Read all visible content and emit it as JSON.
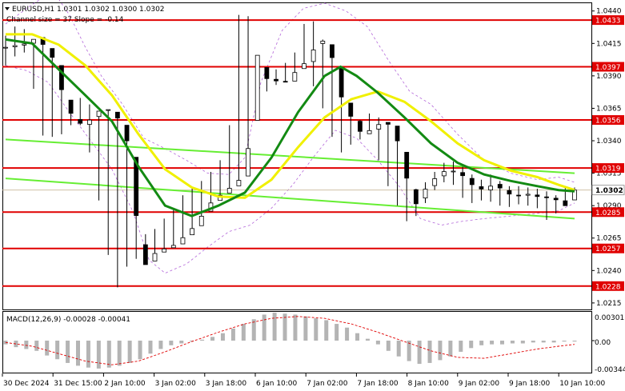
{
  "header": {
    "symbol_line": "EURUSD,H1  1.0301 1.0302 1.0300 1.0302",
    "channel_line": "Channel size = 37 Slope = -0.14"
  },
  "macd": {
    "label": "MACD(12,26,9) -0.00028 -0.00041",
    "ticks": [
      "0.00301",
      "0.00",
      "-0.00344"
    ]
  },
  "price_axis": {
    "ticks": [
      "1.0440",
      "1.0415",
      "1.0390",
      "1.0365",
      "1.0340",
      "1.0315",
      "1.0290",
      "1.0265",
      "1.0240",
      "1.0215"
    ],
    "current_price": "1.0302"
  },
  "levels": [
    {
      "value": 1.0433,
      "label": "1.0433"
    },
    {
      "value": 1.0397,
      "label": "1.0397"
    },
    {
      "value": 1.0356,
      "label": "1.0356"
    },
    {
      "value": 1.0319,
      "label": "1.0319"
    },
    {
      "value": 1.0285,
      "label": "1.0285"
    },
    {
      "value": 1.0257,
      "label": "1.0257"
    },
    {
      "value": 1.0228,
      "label": "1.0228"
    }
  ],
  "time_axis": [
    "30 Dec 2024",
    "31 Dec 15:00",
    "2 Jan 10:00",
    "3 Jan 02:00",
    "3 Jan 18:00",
    "6 Jan 10:00",
    "7 Jan 02:00",
    "7 Jan 18:00",
    "8 Jan 10:00",
    "9 Jan 02:00",
    "9 Jan 18:00",
    "10 Jan 10:00"
  ],
  "colors": {
    "level_line": "#e00000",
    "label_bg": "#e00000",
    "sma_green": "#138a13",
    "sma_yellow": "#f0f000",
    "channel": "#66ee33",
    "envelope": "#b366d9",
    "candles": "#000000"
  },
  "chart_data": {
    "type": "candlestick",
    "symbol": "EURUSD",
    "timeframe": "H1",
    "ohlc": {
      "open": 1.0301,
      "high": 1.0302,
      "low": 1.03,
      "close": 1.0302
    },
    "y_range": [
      1.021,
      1.0446
    ],
    "close_path": [
      [
        0,
        1.0412
      ],
      [
        4,
        1.0415
      ],
      [
        6,
        1.042
      ],
      [
        9,
        1.0403
      ],
      [
        11,
        1.0372
      ],
      [
        13,
        1.0355
      ],
      [
        15,
        1.0352
      ],
      [
        17,
        1.0362
      ],
      [
        19,
        1.0365
      ],
      [
        21,
        1.0358
      ],
      [
        23,
        1.0338
      ],
      [
        24,
        1.0308
      ],
      [
        25,
        1.0262
      ],
      [
        26,
        1.0243
      ],
      [
        28,
        1.0253
      ],
      [
        30,
        1.0257
      ],
      [
        32,
        1.026
      ],
      [
        34,
        1.0268
      ],
      [
        36,
        1.0276
      ],
      [
        38,
        1.029
      ],
      [
        40,
        1.0297
      ],
      [
        42,
        1.0303
      ],
      [
        44,
        1.031
      ],
      [
        45,
        1.0317
      ],
      [
        46,
        1.0345
      ],
      [
        47,
        1.0412
      ],
      [
        48,
        1.0395
      ],
      [
        49,
        1.0388
      ],
      [
        51,
        1.0386
      ],
      [
        53,
        1.0385
      ],
      [
        55,
        1.0396
      ],
      [
        57,
        1.0402
      ],
      [
        59,
        1.042
      ],
      [
        61,
        1.041
      ],
      [
        62,
        1.0395
      ],
      [
        63,
        1.0375
      ],
      [
        65,
        1.0358
      ],
      [
        67,
        1.0345
      ],
      [
        69,
        1.0349
      ],
      [
        71,
        1.0355
      ],
      [
        73,
        1.035
      ],
      [
        74,
        1.0335
      ],
      [
        75,
        1.0318
      ],
      [
        76,
        1.0302
      ],
      [
        77,
        1.029
      ],
      [
        78,
        1.0298
      ],
      [
        80,
        1.0308
      ],
      [
        82,
        1.0316
      ],
      [
        84,
        1.0317
      ],
      [
        86,
        1.0313
      ],
      [
        88,
        1.0305
      ],
      [
        90,
        1.0302
      ],
      [
        92,
        1.0307
      ],
      [
        94,
        1.03
      ],
      [
        96,
        1.0297
      ],
      [
        98,
        1.0299
      ],
      [
        100,
        1.0297
      ],
      [
        102,
        1.0296
      ],
      [
        104,
        1.0294
      ],
      [
        105,
        1.0288
      ],
      [
        106,
        1.0296
      ],
      [
        107,
        1.0302
      ]
    ],
    "highs": [
      1.0421,
      1.0428,
      1.0426,
      1.041,
      1.0388,
      1.0362,
      1.0365,
      1.037,
      1.0373,
      1.0368,
      1.0348,
      1.0318,
      1.0272,
      1.0262,
      1.0265,
      1.0268,
      1.0272,
      1.028,
      1.0288,
      1.0298,
      1.0304,
      1.0309,
      1.0316,
      1.0325,
      1.0352,
      1.0437,
      1.0436,
      1.0405,
      1.0393,
      1.0395,
      1.04,
      1.0408,
      1.043,
      1.0432,
      1.0418,
      1.0397,
      1.0372,
      1.0356,
      1.0356,
      1.0361,
      1.0358,
      1.0344,
      1.0327,
      1.0312,
      1.0303,
      1.0308,
      1.0316,
      1.0323,
      1.0324,
      1.032,
      1.0314,
      1.031,
      1.0314,
      1.0309,
      1.0305,
      1.0305,
      1.0304,
      1.0303,
      1.0301,
      1.0298,
      1.0304,
      1.0304
    ],
    "lows": [
      1.0398,
      1.0405,
      1.0408,
      1.038,
      1.0344,
      1.0343,
      1.0345,
      1.0352,
      1.0352,
      1.0331,
      1.0294,
      1.0252,
      1.0227,
      1.0243,
      1.0249,
      1.0252,
      1.0258,
      1.0266,
      1.0272,
      1.0285,
      1.0291,
      1.0297,
      1.0302,
      1.0309,
      1.0333,
      1.0387,
      1.0378,
      1.0378,
      1.0378,
      1.0383,
      1.0392,
      1.0398,
      1.0403,
      1.0382,
      1.0365,
      1.0343,
      1.0331,
      1.0337,
      1.0341,
      1.0347,
      1.0325,
      1.0305,
      1.029,
      1.0278,
      1.0282,
      1.0292,
      1.0302,
      1.0308,
      1.0306,
      1.0296,
      1.0292,
      1.0294,
      1.0293,
      1.029,
      1.0289,
      1.0291,
      1.029,
      1.0288,
      1.0279,
      1.0284,
      1.0295,
      1.0299
    ],
    "sma_green": [
      [
        0,
        1.0418
      ],
      [
        5,
        1.0415
      ],
      [
        10,
        1.0395
      ],
      [
        15,
        1.0375
      ],
      [
        20,
        1.0355
      ],
      [
        25,
        1.032
      ],
      [
        30,
        1.029
      ],
      [
        35,
        1.0282
      ],
      [
        40,
        1.029
      ],
      [
        45,
        1.03
      ],
      [
        50,
        1.0327
      ],
      [
        55,
        1.0362
      ],
      [
        60,
        1.039
      ],
      [
        63,
        1.0397
      ],
      [
        66,
        1.039
      ],
      [
        70,
        1.0377
      ],
      [
        75,
        1.0358
      ],
      [
        80,
        1.0338
      ],
      [
        85,
        1.0323
      ],
      [
        90,
        1.0314
      ],
      [
        95,
        1.0309
      ],
      [
        100,
        1.0305
      ],
      [
        104,
        1.0302
      ],
      [
        107,
        1.0301
      ]
    ],
    "sma_yellow": [
      [
        0,
        1.0422
      ],
      [
        5,
        1.0422
      ],
      [
        10,
        1.0414
      ],
      [
        15,
        1.0398
      ],
      [
        20,
        1.0375
      ],
      [
        25,
        1.0345
      ],
      [
        30,
        1.0318
      ],
      [
        35,
        1.0304
      ],
      [
        40,
        1.0297
      ],
      [
        45,
        1.0296
      ],
      [
        50,
        1.031
      ],
      [
        55,
        1.0335
      ],
      [
        60,
        1.0358
      ],
      [
        65,
        1.0372
      ],
      [
        70,
        1.0378
      ],
      [
        75,
        1.037
      ],
      [
        80,
        1.0355
      ],
      [
        85,
        1.0338
      ],
      [
        90,
        1.0325
      ],
      [
        95,
        1.0317
      ],
      [
        100,
        1.0312
      ],
      [
        104,
        1.0306
      ],
      [
        107,
        1.0302
      ]
    ],
    "channel": {
      "upper": [
        [
          0,
          1.0341
        ],
        [
          107,
          1.0315
        ]
      ],
      "lower": [
        [
          0,
          1.0311
        ],
        [
          107,
          1.028
        ]
      ]
    },
    "envelope_upper": [
      [
        0,
        1.043
      ],
      [
        5,
        1.0445
      ],
      [
        9,
        1.0455
      ],
      [
        12,
        1.0437
      ],
      [
        15,
        1.0412
      ],
      [
        18,
        1.039
      ],
      [
        22,
        1.0368
      ],
      [
        26,
        1.0342
      ],
      [
        30,
        1.0334
      ],
      [
        34,
        1.0325
      ],
      [
        38,
        1.0315
      ],
      [
        42,
        1.0314
      ],
      [
        45,
        1.0327
      ],
      [
        48,
        1.0385
      ],
      [
        52,
        1.0425
      ],
      [
        56,
        1.0442
      ],
      [
        60,
        1.0446
      ],
      [
        64,
        1.044
      ],
      [
        68,
        1.0428
      ],
      [
        72,
        1.0402
      ],
      [
        76,
        1.0378
      ],
      [
        80,
        1.0368
      ],
      [
        85,
        1.0345
      ],
      [
        90,
        1.0325
      ],
      [
        95,
        1.0315
      ],
      [
        100,
        1.031
      ],
      [
        104,
        1.0312
      ],
      [
        107,
        1.0308
      ]
    ],
    "envelope_lower": [
      [
        0,
        1.0398
      ],
      [
        4,
        1.0394
      ],
      [
        8,
        1.0385
      ],
      [
        12,
        1.0362
      ],
      [
        16,
        1.034
      ],
      [
        20,
        1.0318
      ],
      [
        24,
        1.0285
      ],
      [
        27,
        1.0248
      ],
      [
        30,
        1.0238
      ],
      [
        34,
        1.0245
      ],
      [
        38,
        1.0258
      ],
      [
        42,
        1.027
      ],
      [
        46,
        1.0275
      ],
      [
        50,
        1.0288
      ],
      [
        54,
        1.0306
      ],
      [
        58,
        1.0328
      ],
      [
        62,
        1.0348
      ],
      [
        66,
        1.0342
      ],
      [
        70,
        1.0325
      ],
      [
        74,
        1.0305
      ],
      [
        78,
        1.028
      ],
      [
        82,
        1.0275
      ],
      [
        86,
        1.0278
      ],
      [
        90,
        1.028
      ],
      [
        95,
        1.0282
      ],
      [
        100,
        1.0284
      ],
      [
        104,
        1.0286
      ],
      [
        107,
        1.0292
      ]
    ],
    "macd_hist": [
      -0.0004,
      -0.0007,
      -0.0009,
      -0.0011,
      -0.0016,
      -0.002,
      -0.0024,
      -0.0027,
      -0.0029,
      -0.003,
      -0.0029,
      -0.0027,
      -0.0024,
      -0.002,
      -0.0014,
      -0.0009,
      -0.0005,
      -0.0003,
      -0.0001,
      0.0001,
      0.0004,
      0.0008,
      0.0013,
      0.0018,
      0.0023,
      0.0028,
      0.003,
      0.0029,
      0.0028,
      0.0026,
      0.0024,
      0.0022,
      0.0018,
      0.0014,
      0.0008,
      0.0002,
      -0.0004,
      -0.0011,
      -0.0017,
      -0.0022,
      -0.0025,
      -0.0024,
      -0.0021,
      -0.0017,
      -0.0012,
      -0.0008,
      -0.0005,
      -0.0004,
      -0.0004,
      -0.0003,
      -0.0003,
      -0.0002,
      -0.0002,
      -0.0002,
      -0.0001,
      -0.0001
    ],
    "macd_signal": [
      [
        0,
        -0.0002
      ],
      [
        5,
        -0.0006
      ],
      [
        10,
        -0.0014
      ],
      [
        15,
        -0.0022
      ],
      [
        20,
        -0.0026
      ],
      [
        25,
        -0.0022
      ],
      [
        30,
        -0.0012
      ],
      [
        35,
        -0.0001
      ],
      [
        40,
        0.0009
      ],
      [
        45,
        0.0018
      ],
      [
        50,
        0.0024
      ],
      [
        55,
        0.0026
      ],
      [
        60,
        0.0024
      ],
      [
        65,
        0.0018
      ],
      [
        70,
        0.0009
      ],
      [
        75,
        -0.0001
      ],
      [
        80,
        -0.0011
      ],
      [
        85,
        -0.0018
      ],
      [
        90,
        -0.0019
      ],
      [
        95,
        -0.0014
      ],
      [
        100,
        -0.0009
      ],
      [
        104,
        -0.0006
      ],
      [
        107,
        -0.0004
      ]
    ],
    "macd_range": [
      -0.00344,
      0.00301
    ]
  }
}
